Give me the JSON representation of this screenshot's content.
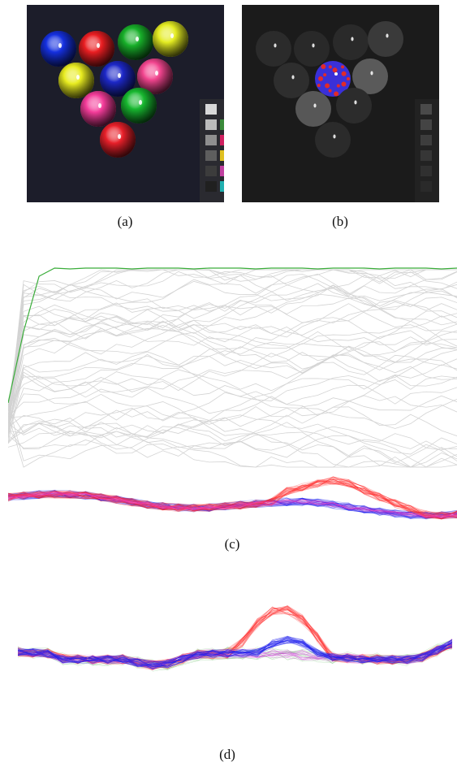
{
  "figure": {
    "captions": {
      "a": "(a)",
      "b": "(b)",
      "c": "(c)",
      "d": "(d)"
    },
    "panel_a": {
      "background": "#1c1d2a",
      "balls": [
        {
          "color": "#1530e0"
        },
        {
          "color": "#ea1e22"
        },
        {
          "color": "#18b02a"
        },
        {
          "color": "#e4ec22"
        },
        {
          "color": "#e8ec20"
        },
        {
          "color": "#1d28c8"
        },
        {
          "color": "#f2458f"
        },
        {
          "color": "#f43c9a"
        },
        {
          "color": "#18b830"
        },
        {
          "color": "#e8202a"
        }
      ],
      "chart_swatches": [
        "#d8d8d8",
        "#bbbbbb",
        "#8f8f8f",
        "#5e5e5e",
        "#3c3c3c",
        "#202020"
      ],
      "chart_side_colors": [
        "#3a8a3a",
        "#d02060",
        "#e0c020",
        "#c040a0",
        "#20b0b0"
      ]
    },
    "panel_b": {
      "background": "#1b1b1b",
      "highlighted_ball_colors": [
        "#3a30d8",
        "#e02a2a"
      ]
    },
    "panel_c": {
      "colors": {
        "highlight": "#3aad3a",
        "gray": "#c9c9c9",
        "red": "#ff2a2a",
        "blue": "#1a1aee",
        "magenta": "#ff40c0"
      }
    },
    "panel_d": {
      "colors": {
        "red": "#ff2a2a",
        "blue": "#2020ee",
        "magenta": "#cc30d8",
        "green": "#6cc06c"
      }
    }
  }
}
